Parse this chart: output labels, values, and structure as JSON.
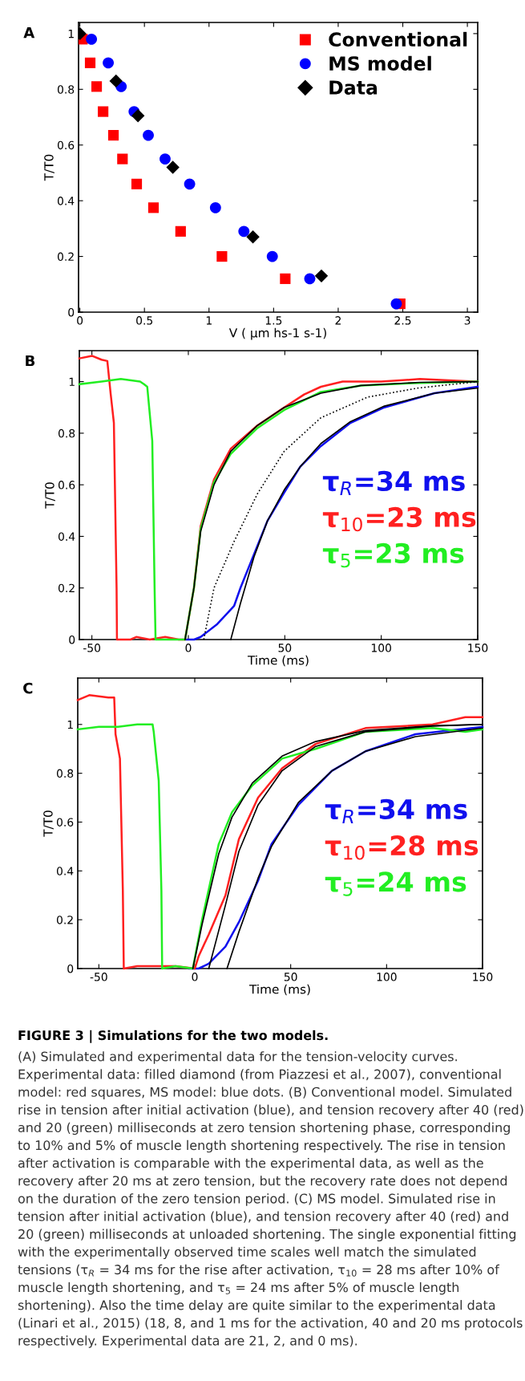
{
  "chart_data": [
    {
      "type": "scatter",
      "title": "A",
      "xlabel": "V ( μm hs-1 s-1)",
      "ylabel": "T/T0",
      "xlim": [
        -0.01,
        3.08
      ],
      "ylim": [
        0,
        1.04
      ],
      "xticks": [
        0,
        0.5,
        1,
        1.5,
        2,
        2.5,
        3
      ],
      "yticks": [
        0,
        0.2,
        0.4,
        0.6,
        0.8,
        1
      ],
      "legend": "top right",
      "series": [
        {
          "name": "Conventional",
          "color": "#ff0000",
          "marker": "square",
          "x": [
            0.02,
            0.08,
            0.13,
            0.18,
            0.26,
            0.33,
            0.44,
            0.57,
            0.78,
            1.1,
            1.59,
            2.48
          ],
          "values": [
            0.98,
            0.895,
            0.81,
            0.72,
            0.635,
            0.55,
            0.46,
            0.375,
            0.29,
            0.2,
            0.12,
            0.03
          ]
        },
        {
          "name": "MS model",
          "color": "#0000ff",
          "marker": "circle",
          "x": [
            0.09,
            0.22,
            0.32,
            0.42,
            0.53,
            0.66,
            0.85,
            1.05,
            1.27,
            1.49,
            1.78,
            2.45
          ],
          "values": [
            0.98,
            0.895,
            0.81,
            0.72,
            0.635,
            0.55,
            0.46,
            0.375,
            0.29,
            0.2,
            0.12,
            0.03
          ]
        },
        {
          "name": "Data",
          "color": "#000000",
          "marker": "diamond",
          "x": [
            0,
            0.28,
            0.45,
            0.72,
            1.34,
            1.87
          ],
          "values": [
            1.0,
            0.83,
            0.705,
            0.52,
            0.27,
            0.13
          ]
        }
      ]
    },
    {
      "type": "line",
      "title": "B",
      "xlabel": "Time (ms)",
      "ylabel": "T/T0",
      "xlim": [
        -56.5,
        150
      ],
      "ylim": [
        0,
        1.12
      ],
      "xticks": [
        -50,
        0,
        50,
        100,
        150
      ],
      "yticks": [
        0,
        0.2,
        0.4,
        0.6,
        0.8,
        1
      ],
      "annotations": [
        "τ$_{R}$=34 ms",
        "τ$_{10}$=23 ms",
        "τ$_{5}$=23 ms"
      ],
      "series": [
        {
          "color": "#1010ee",
          "x": [
            -1,
            3,
            6.4,
            15,
            23.7,
            27,
            34,
            41,
            49.7,
            58,
            68.7,
            84,
            101.6,
            127.6,
            150
          ],
          "values": [
            0,
            0,
            0.01,
            0.06,
            0.13,
            0.2,
            0.33,
            0.46,
            0.57,
            0.67,
            0.75,
            0.84,
            0.9,
            0.955,
            0.98
          ]
        },
        {
          "color": "#ff2020",
          "x": [
            -56.5,
            -50,
            -45,
            -42,
            -40.3,
            -38.6,
            -37.2,
            -37,
            -30,
            -27,
            -20,
            -12,
            -5,
            -1.7,
            2.9,
            6.4,
            13.3,
            22,
            35.8,
            49.7,
            60,
            68.7,
            80,
            100,
            120,
            150
          ],
          "values": [
            1.09,
            1.1,
            1.085,
            1.08,
            0.955,
            0.84,
            0.2,
            0,
            0,
            0.01,
            0,
            0.01,
            0,
            0,
            0.2,
            0.44,
            0.62,
            0.74,
            0.83,
            0.9,
            0.95,
            0.98,
            1.0,
            1.0,
            1.01,
            1.0
          ]
        },
        {
          "color": "#22ee22",
          "x": [
            -56.5,
            -45,
            -35,
            -25,
            -23,
            -21.3,
            -18.7,
            -17.5,
            -17,
            -10,
            -1.7,
            2.9,
            6.4,
            13.3,
            22,
            35.8,
            49.7,
            68.7,
            89.5,
            120,
            150
          ],
          "values": [
            0.99,
            1.0,
            1.01,
            1.0,
            0.99,
            0.98,
            0.77,
            0.2,
            0,
            0,
            0,
            0.2,
            0.43,
            0.61,
            0.72,
            0.82,
            0.89,
            0.96,
            0.985,
            0.995,
            1.0
          ]
        },
        {
          "color": "#000000",
          "x": [
            -1.7,
            2.9,
            6.4,
            13.3,
            22,
            35.8,
            49.7,
            68.7,
            89.5,
            120,
            150
          ],
          "values": [
            0,
            0.2,
            0.42,
            0.6,
            0.73,
            0.83,
            0.9,
            0.955,
            0.985,
            0.997,
            1.0
          ]
        },
        {
          "color": "#000000",
          "x": [
            22,
            27,
            34,
            41,
            49.7,
            58,
            68.7,
            84,
            101.6,
            127.6,
            150
          ],
          "values": [
            0,
            0.14,
            0.32,
            0.46,
            0.58,
            0.67,
            0.76,
            0.845,
            0.905,
            0.955,
            0.975
          ]
        },
        {
          "color": "#000000",
          "line_style": "dotted",
          "x": [
            8,
            13.3,
            23.7,
            35.8,
            49.7,
            68.7,
            93,
            119,
            150
          ],
          "values": [
            0,
            0.2,
            0.38,
            0.565,
            0.73,
            0.86,
            0.94,
            0.975,
            1.0
          ]
        }
      ]
    },
    {
      "type": "line",
      "title": "C",
      "xlabel": "Time (ms)",
      "ylabel": "T/T0",
      "xlim": [
        -61,
        150
      ],
      "ylim": [
        0,
        1.19
      ],
      "xticks": [
        -50,
        0,
        50,
        100,
        150
      ],
      "yticks": [
        0,
        0.2,
        0.4,
        0.6,
        0.8,
        1
      ],
      "annotations": [
        "τ$_{R}$=34 ms",
        "τ$_{10}$=28 ms",
        "τ$_{5}$=24 ms"
      ],
      "series": [
        {
          "color": "#1010ee",
          "x": [
            -3,
            2,
            7.3,
            16,
            23,
            33,
            40,
            54,
            71.5,
            89,
            115,
            150
          ],
          "values": [
            0,
            0,
            0.02,
            0.09,
            0.19,
            0.36,
            0.51,
            0.67,
            0.81,
            0.89,
            0.96,
            0.99
          ]
        },
        {
          "color": "#ff2020",
          "x": [
            -61,
            -55,
            -45,
            -42,
            -41.3,
            -39,
            -37.5,
            -37,
            -30,
            -20,
            -10,
            0,
            2,
            7.3,
            16,
            23,
            33,
            45.5,
            63,
            89,
            124,
            141,
            150
          ],
          "values": [
            1.1,
            1.12,
            1.11,
            1.11,
            0.96,
            0.86,
            0.32,
            0,
            0.01,
            0.01,
            0.01,
            0,
            0.05,
            0.14,
            0.3,
            0.53,
            0.7,
            0.82,
            0.92,
            0.985,
            1.0,
            1.03,
            1.03
          ]
        },
        {
          "color": "#22ee22",
          "x": [
            -61,
            -50,
            -40,
            -30,
            -22,
            -21.4,
            -18.8,
            -17.4,
            -17,
            -10,
            -1,
            3.8,
            12.5,
            19.4,
            30,
            45.5,
            63,
            89,
            124,
            141,
            150
          ],
          "values": [
            0.98,
            0.99,
            0.99,
            1.0,
            1.0,
            0.97,
            0.77,
            0.32,
            0,
            0.01,
            0,
            0.2,
            0.51,
            0.64,
            0.75,
            0.86,
            0.9,
            0.97,
            0.985,
            0.97,
            0.98
          ]
        },
        {
          "color": "#000000",
          "x": [
            -1,
            3.8,
            12.5,
            19.4,
            30,
            45.5,
            63,
            89,
            124,
            150
          ],
          "values": [
            0,
            0.18,
            0.47,
            0.62,
            0.76,
            0.87,
            0.93,
            0.975,
            0.995,
            1.0
          ]
        },
        {
          "color": "#000000",
          "x": [
            7.3,
            16,
            23,
            33,
            45.5,
            63,
            89,
            124,
            150
          ],
          "values": [
            0,
            0.26,
            0.48,
            0.67,
            0.81,
            0.91,
            0.97,
            0.993,
            1.0
          ]
        },
        {
          "color": "#000000",
          "x": [
            16.8,
            23,
            33,
            40,
            54,
            71.5,
            89,
            115,
            150
          ],
          "values": [
            0,
            0.15,
            0.37,
            0.5,
            0.68,
            0.81,
            0.89,
            0.95,
            0.985
          ]
        }
      ]
    },
    {
      "type": "other",
      "title": "FIGURE 3 | Simulations for the two models.",
      "annotations": [
        "(A) Simulated and experimental data for the tension-velocity curves. Experimental data: filled diamond (from Piazzesi et al., 2007), conventional model: red squares, MS model: blue dots. (B) Conventional model. Simulated rise in tension after initial activation (blue), and tension recovery after 40 (red) and 20 (green) milliseconds at zero tension shortening phase, corresponding to 10% and 5% of muscle length shortening respectively. The rise in tension after activation is comparable with the experimental data, as well as the recovery after 20 ms at zero tension, but the recovery rate does not depend on the duration of the zero tension period. (C) MS model. Simulated rise in tension after initial activation (blue), and tension recovery after 40 (red) and 20 (green) milliseconds at unloaded shortening. The single exponential fitting with the experimentally observed time scales well match the simulated tensions (τ$_{R}$ = 34 ms for the rise after activation, τ$_{10}$ = 28 ms after 10% of muscle length shortening, and τ$_{5}$ = 24 ms after 5% of muscle length shortening). Also the time delay are quite similar to the experimental data (Linari et al., 2015) (18, 8, and 1 ms for the activation, 40 and 20 ms protocols respectively. Experimental data are 21, 2, and 0 ms)."
      ]
    }
  ]
}
